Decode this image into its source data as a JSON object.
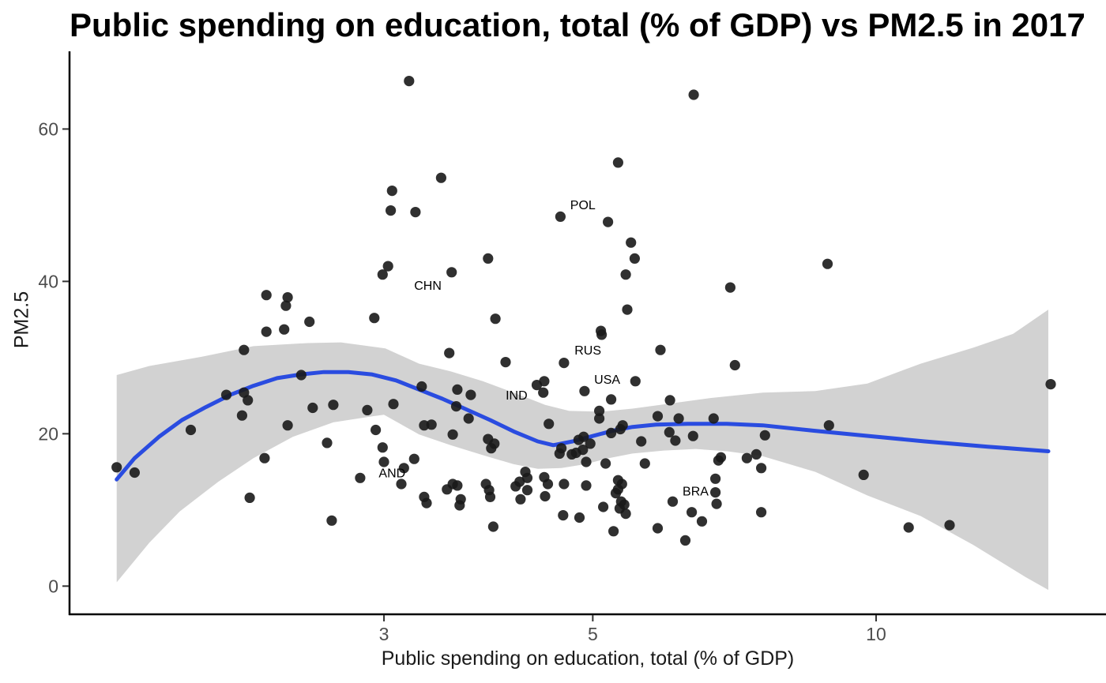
{
  "chart_data": {
    "type": "scatter",
    "title": "Public spending on education, total (% of GDP) vs PM2.5 in 2017",
    "xlabel": "Public spending on education, total (% of GDP)",
    "ylabel": "PM2.5",
    "x_scale": "log10",
    "xlim": [
      1.39,
      17.55
    ],
    "ylim": [
      -3.7,
      70.2
    ],
    "x_ticks": [
      3,
      5,
      10
    ],
    "y_ticks": [
      0,
      20,
      40,
      60
    ],
    "grid": false,
    "legend": "none",
    "colors": {
      "point": "#1a1a1a",
      "trend": "#2a4ce0",
      "ci_band": "#d2d2d2",
      "tick_mark": "#333333",
      "tick_text": "#4d4d4d",
      "axis_line": "#000000",
      "background": "#ffffff"
    },
    "points": [
      [
        3.19,
        66.3
      ],
      [
        3.06,
        51.9
      ],
      [
        3.05,
        49.3
      ],
      [
        3.24,
        49.1
      ],
      [
        3.03,
        42.0
      ],
      [
        2.99,
        40.9
      ],
      [
        2.25,
        38.2
      ],
      [
        2.37,
        37.9
      ],
      [
        2.36,
        36.8
      ],
      [
        2.5,
        34.7
      ],
      [
        2.93,
        35.2
      ],
      [
        2.25,
        33.4
      ],
      [
        2.35,
        33.7
      ],
      [
        6.4,
        64.5
      ],
      [
        5.32,
        55.6
      ],
      [
        3.45,
        53.6
      ],
      [
        4.62,
        48.5
      ],
      [
        5.19,
        47.8
      ],
      [
        5.49,
        45.1
      ],
      [
        5.54,
        43.0
      ],
      [
        5.42,
        40.9
      ],
      [
        3.54,
        41.2
      ],
      [
        3.87,
        43.0
      ],
      [
        7.0,
        39.2
      ],
      [
        5.44,
        36.3
      ],
      [
        3.94,
        35.1
      ],
      [
        5.1,
        33.5
      ],
      [
        8.88,
        42.3
      ],
      [
        2.13,
        31.0
      ],
      [
        2.04,
        25.1
      ],
      [
        2.13,
        25.4
      ],
      [
        2.15,
        24.4
      ],
      [
        2.12,
        22.4
      ],
      [
        1.87,
        20.5
      ],
      [
        2.45,
        27.7
      ],
      [
        2.52,
        23.4
      ],
      [
        2.65,
        23.8
      ],
      [
        2.37,
        21.1
      ],
      [
        2.61,
        18.8
      ],
      [
        2.24,
        16.8
      ],
      [
        2.88,
        23.1
      ],
      [
        2.94,
        20.5
      ],
      [
        3.07,
        23.9
      ],
      [
        2.99,
        18.2
      ],
      [
        3.0,
        16.3
      ],
      [
        3.15,
        15.5
      ],
      [
        3.23,
        16.7
      ],
      [
        3.13,
        13.4
      ],
      [
        2.83,
        14.2
      ],
      [
        1.56,
        15.6
      ],
      [
        1.63,
        14.9
      ],
      [
        2.16,
        11.6
      ],
      [
        2.64,
        8.6
      ],
      [
        5.11,
        33.0
      ],
      [
        3.52,
        30.6
      ],
      [
        5.9,
        31.0
      ],
      [
        4.04,
        29.4
      ],
      [
        4.66,
        29.3
      ],
      [
        7.08,
        29.0
      ],
      [
        4.44,
        26.9
      ],
      [
        4.36,
        26.4
      ],
      [
        4.43,
        25.4
      ],
      [
        5.55,
        26.9
      ],
      [
        4.9,
        25.6
      ],
      [
        3.59,
        25.8
      ],
      [
        3.71,
        25.1
      ],
      [
        5.23,
        24.5
      ],
      [
        6.04,
        24.4
      ],
      [
        3.29,
        26.2
      ],
      [
        3.58,
        23.6
      ],
      [
        3.31,
        21.1
      ],
      [
        3.37,
        21.2
      ],
      [
        3.55,
        19.9
      ],
      [
        3.69,
        22.0
      ],
      [
        5.08,
        23.0
      ],
      [
        5.08,
        22.0
      ],
      [
        5.86,
        22.3
      ],
      [
        6.17,
        22.0
      ],
      [
        6.72,
        22.0
      ],
      [
        6.03,
        20.2
      ],
      [
        6.12,
        19.1
      ],
      [
        6.39,
        19.7
      ],
      [
        3.87,
        19.3
      ],
      [
        3.93,
        18.7
      ],
      [
        3.9,
        18.1
      ],
      [
        4.49,
        21.3
      ],
      [
        5.23,
        20.1
      ],
      [
        5.35,
        20.6
      ],
      [
        5.38,
        21.1
      ],
      [
        4.83,
        19.2
      ],
      [
        4.89,
        19.6
      ],
      [
        4.97,
        18.7
      ],
      [
        4.63,
        18.1
      ],
      [
        4.61,
        17.4
      ],
      [
        4.75,
        17.3
      ],
      [
        4.8,
        17.5
      ],
      [
        4.88,
        17.9
      ],
      [
        5.63,
        19.0
      ],
      [
        6.84,
        16.9
      ],
      [
        7.29,
        16.8
      ],
      [
        7.46,
        17.3
      ],
      [
        7.55,
        15.5
      ],
      [
        4.92,
        16.3
      ],
      [
        5.16,
        16.1
      ],
      [
        5.68,
        16.1
      ],
      [
        4.24,
        15.0
      ],
      [
        4.26,
        14.2
      ],
      [
        4.18,
        13.7
      ],
      [
        4.14,
        13.1
      ],
      [
        4.26,
        12.6
      ],
      [
        4.19,
        11.4
      ],
      [
        4.44,
        14.3
      ],
      [
        4.48,
        13.4
      ],
      [
        4.45,
        11.8
      ],
      [
        4.66,
        13.4
      ],
      [
        3.85,
        13.4
      ],
      [
        3.88,
        12.6
      ],
      [
        3.89,
        11.7
      ],
      [
        3.55,
        13.4
      ],
      [
        3.59,
        13.2
      ],
      [
        3.5,
        12.7
      ],
      [
        3.62,
        11.4
      ],
      [
        3.61,
        10.6
      ],
      [
        3.31,
        11.7
      ],
      [
        3.33,
        10.9
      ],
      [
        4.92,
        13.2
      ],
      [
        5.32,
        13.9
      ],
      [
        5.37,
        13.4
      ],
      [
        5.32,
        12.7
      ],
      [
        5.29,
        12.2
      ],
      [
        5.36,
        11.1
      ],
      [
        5.4,
        10.7
      ],
      [
        5.34,
        10.2
      ],
      [
        5.42,
        9.5
      ],
      [
        5.13,
        10.4
      ],
      [
        6.08,
        11.1
      ],
      [
        6.37,
        9.7
      ],
      [
        6.75,
        14.1
      ],
      [
        6.75,
        12.3
      ],
      [
        6.77,
        10.8
      ],
      [
        6.53,
        8.5
      ],
      [
        4.65,
        9.3
      ],
      [
        4.84,
        9.0
      ],
      [
        3.92,
        7.8
      ],
      [
        5.26,
        7.2
      ],
      [
        5.86,
        7.6
      ],
      [
        6.27,
        6.0
      ],
      [
        7.55,
        9.7
      ],
      [
        7.62,
        19.8
      ],
      [
        8.91,
        21.1
      ],
      [
        9.7,
        14.6
      ],
      [
        10.83,
        7.7
      ],
      [
        11.97,
        8.0
      ],
      [
        15.33,
        26.5
      ],
      [
        6.8,
        16.5
      ]
    ],
    "country_labels": [
      {
        "text": "POL",
        "x": 4.88,
        "y": 50.1
      },
      {
        "text": "CHN",
        "x": 3.34,
        "y": 39.5
      },
      {
        "text": "RUS",
        "x": 4.94,
        "y": 31.0
      },
      {
        "text": "USA",
        "x": 5.18,
        "y": 27.2
      },
      {
        "text": "IND",
        "x": 4.15,
        "y": 25.1
      },
      {
        "text": "AND",
        "x": 3.06,
        "y": 14.9
      },
      {
        "text": "BRA",
        "x": 6.43,
        "y": 12.5
      }
    ],
    "trend": {
      "name": "loess-smooth",
      "values": [
        [
          1.56,
          14.0
        ],
        [
          1.63,
          16.8
        ],
        [
          1.73,
          19.6
        ],
        [
          1.83,
          21.8
        ],
        [
          1.94,
          23.5
        ],
        [
          2.06,
          25.1
        ],
        [
          2.18,
          26.3
        ],
        [
          2.31,
          27.3
        ],
        [
          2.45,
          27.8
        ],
        [
          2.59,
          28.1
        ],
        [
          2.75,
          28.1
        ],
        [
          2.91,
          27.8
        ],
        [
          3.09,
          27.0
        ],
        [
          3.27,
          25.8
        ],
        [
          3.46,
          24.6
        ],
        [
          3.67,
          23.2
        ],
        [
          3.89,
          21.8
        ],
        [
          4.12,
          20.3
        ],
        [
          4.37,
          19.0
        ],
        [
          4.54,
          18.5
        ],
        [
          4.76,
          19.0
        ],
        [
          5.0,
          19.7
        ],
        [
          5.25,
          20.4
        ],
        [
          5.51,
          20.9
        ],
        [
          5.84,
          21.2
        ],
        [
          6.31,
          21.3
        ],
        [
          6.94,
          21.3
        ],
        [
          7.58,
          21.1
        ],
        [
          8.59,
          20.4
        ],
        [
          9.83,
          19.7
        ],
        [
          11.26,
          19.0
        ],
        [
          13.14,
          18.3
        ],
        [
          15.24,
          17.7
        ]
      ]
    },
    "ci_band": {
      "upper": [
        [
          1.56,
          27.7
        ],
        [
          1.69,
          28.9
        ],
        [
          1.92,
          30.1
        ],
        [
          2.18,
          31.5
        ],
        [
          2.49,
          31.9
        ],
        [
          2.7,
          32.0
        ],
        [
          3.01,
          31.2
        ],
        [
          3.27,
          29.2
        ],
        [
          3.53,
          28.2
        ],
        [
          3.82,
          26.9
        ],
        [
          4.12,
          25.4
        ],
        [
          4.45,
          23.8
        ],
        [
          4.72,
          23.0
        ],
        [
          5.1,
          22.9
        ],
        [
          5.51,
          23.3
        ],
        [
          6.07,
          24.0
        ],
        [
          6.68,
          24.7
        ],
        [
          7.58,
          25.4
        ],
        [
          8.62,
          25.6
        ],
        [
          9.79,
          26.6
        ],
        [
          11.15,
          29.2
        ],
        [
          12.69,
          31.3
        ],
        [
          13.98,
          33.1
        ],
        [
          15.24,
          36.3
        ]
      ],
      "lower": [
        [
          1.56,
          0.5
        ],
        [
          1.69,
          5.7
        ],
        [
          1.82,
          9.8
        ],
        [
          2.0,
          13.7
        ],
        [
          2.18,
          16.8
        ],
        [
          2.4,
          19.6
        ],
        [
          2.65,
          21.5
        ],
        [
          2.92,
          22.3
        ],
        [
          3.0,
          22.5
        ],
        [
          3.27,
          19.9
        ],
        [
          3.53,
          18.5
        ],
        [
          3.82,
          17.2
        ],
        [
          4.12,
          16.0
        ],
        [
          4.37,
          15.4
        ],
        [
          4.63,
          15.5
        ],
        [
          4.91,
          16.0
        ],
        [
          5.2,
          16.8
        ],
        [
          5.51,
          17.4
        ],
        [
          5.95,
          17.8
        ],
        [
          6.43,
          18.0
        ],
        [
          6.94,
          17.7
        ],
        [
          7.55,
          17.1
        ],
        [
          8.62,
          15.0
        ],
        [
          9.79,
          11.9
        ],
        [
          11.15,
          9.2
        ],
        [
          12.69,
          5.4
        ],
        [
          14.41,
          1.2
        ],
        [
          15.24,
          -0.5
        ]
      ]
    }
  }
}
